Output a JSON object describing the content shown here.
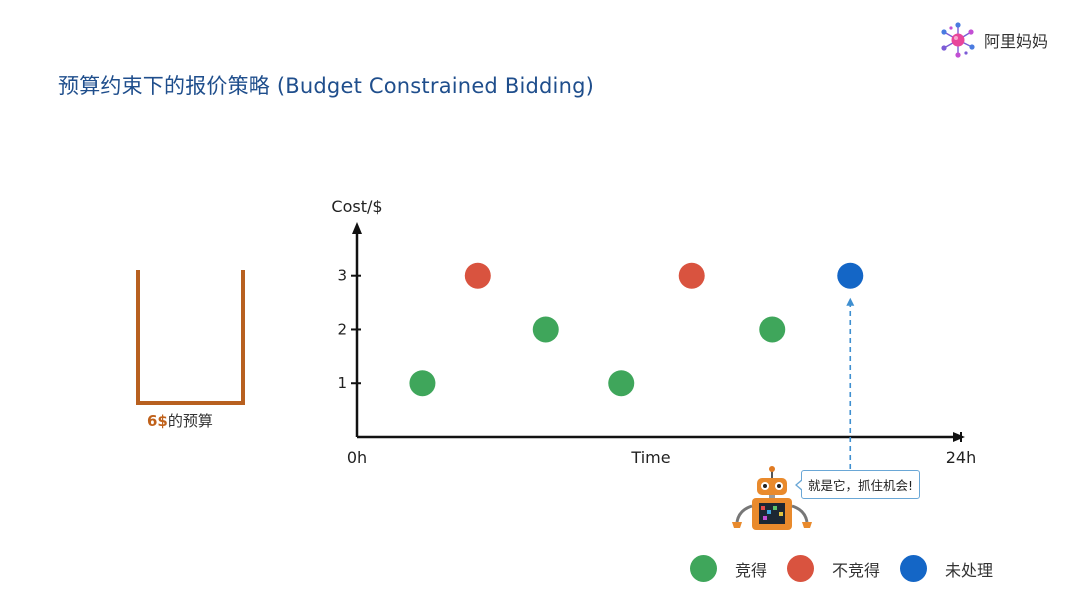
{
  "title": "预算约束下的报价策略 (Budget Constrained Bidding)",
  "logo": {
    "icon": "molecule-logo-icon",
    "text": "阿里妈妈"
  },
  "budget": {
    "amount": "6$",
    "suffix": "的预算",
    "color": "#b8601f"
  },
  "speech_bubble": "就是它，抓住机会!",
  "colors": {
    "won": "#3fa65b",
    "lost": "#d9533f",
    "pending": "#1466c6"
  },
  "chart_data": {
    "type": "scatter",
    "ylabel": "Cost/$",
    "xlabel": "Time",
    "x_tick_labels": [
      "0h",
      "24h"
    ],
    "y_ticks": [
      1,
      2,
      3
    ],
    "xlim": [
      0,
      24
    ],
    "ylim": [
      0,
      3.85
    ],
    "arrow_target_point_index": 6,
    "points": [
      {
        "x": 2.6,
        "y": 1,
        "status": "won"
      },
      {
        "x": 4.8,
        "y": 3,
        "status": "lost"
      },
      {
        "x": 7.5,
        "y": 2,
        "status": "won"
      },
      {
        "x": 10.5,
        "y": 1,
        "status": "won"
      },
      {
        "x": 13.3,
        "y": 3,
        "status": "lost"
      },
      {
        "x": 16.5,
        "y": 2,
        "status": "won"
      },
      {
        "x": 19.6,
        "y": 3,
        "status": "pending"
      }
    ],
    "legend": [
      {
        "status": "won",
        "label": "竞得"
      },
      {
        "status": "lost",
        "label": "不竞得"
      },
      {
        "status": "pending",
        "label": "未处理"
      }
    ]
  }
}
